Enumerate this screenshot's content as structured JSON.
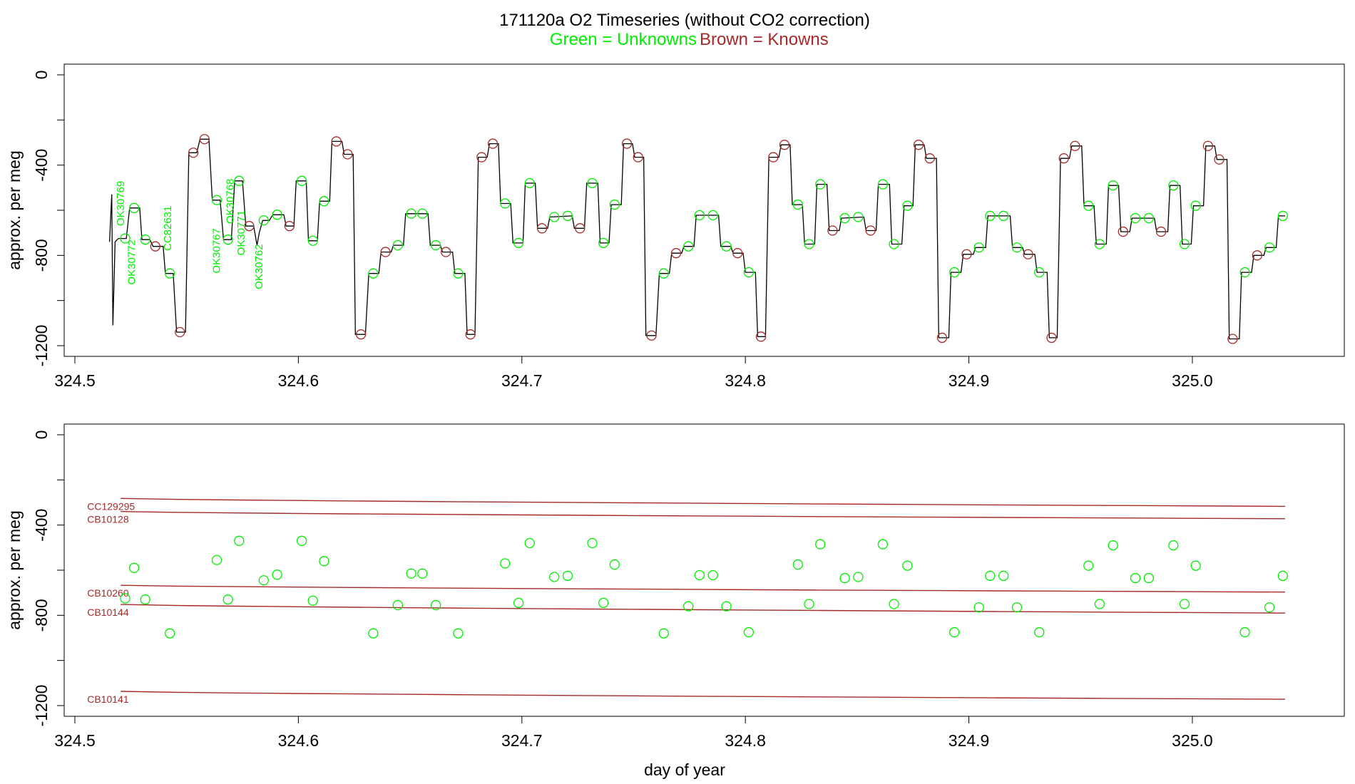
{
  "chart_data": {
    "type": "line",
    "title": "171120a   O2 Timeseries (without CO2 correction)",
    "subtitle_green": "Green = Unknowns",
    "subtitle_brown": "Brown = Knowns",
    "xlabel": "day of year",
    "xlim": [
      324.5,
      325.06
    ],
    "xticks": [
      324.5,
      324.6,
      324.7,
      324.8,
      324.9,
      325.0
    ],
    "xtick_labels": [
      "324.5",
      "324.6",
      "324.7",
      "324.8",
      "324.9",
      "325.0"
    ],
    "colors": {
      "unknown": "#00ee00",
      "known": "#a52a2a",
      "trace": "#000000"
    },
    "panels": [
      {
        "ylabel": "approx. per meg",
        "ylim": [
          -1200,
          0
        ],
        "yticks": [
          0,
          -400,
          -800,
          -1200
        ],
        "ytick_labels": [
          "0",
          "-400",
          "-800",
          "-1200"
        ],
        "vertical_labels": [
          {
            "text": "OK30769",
            "x": 324.522,
            "y": -670
          },
          {
            "text": "OK30772",
            "x": 324.527,
            "y": -930
          },
          {
            "text": "CC82631",
            "x": 324.543,
            "y": -780
          },
          {
            "text": "OK30767",
            "x": 324.565,
            "y": -880
          },
          {
            "text": "OK30768",
            "x": 324.571,
            "y": -660
          },
          {
            "text": "OK30771",
            "x": 324.576,
            "y": -800
          },
          {
            "text": "OK30762",
            "x": 324.584,
            "y": -950
          }
        ]
      },
      {
        "ylabel": "approx. per meg",
        "ylim": [
          -1200,
          0
        ],
        "yticks": [
          0,
          -400,
          -800,
          -1200
        ],
        "ytick_labels": [
          "0",
          "-400",
          "-800",
          "-1200"
        ],
        "references": [
          {
            "name": "CC129295",
            "y_start": -282,
            "y_end": -317
          },
          {
            "name": "CB10128",
            "y_start": -340,
            "y_end": -372
          },
          {
            "name": "CB10260",
            "y_start": -667,
            "y_end": -697
          },
          {
            "name": "CB10144",
            "y_start": -752,
            "y_end": -790
          },
          {
            "name": "CB10141",
            "y_start": -1137,
            "y_end": -1172
          }
        ]
      }
    ],
    "unknowns": [
      {
        "x": 324.5225,
        "y": -725
      },
      {
        "x": 324.5265,
        "y": -590
      },
      {
        "x": 324.5315,
        "y": -730
      },
      {
        "x": 324.5425,
        "y": -880
      },
      {
        "x": 324.5635,
        "y": -555
      },
      {
        "x": 324.5685,
        "y": -730
      },
      {
        "x": 324.5735,
        "y": -470
      },
      {
        "x": 324.5845,
        "y": -645
      },
      {
        "x": 324.5905,
        "y": -620
      },
      {
        "x": 324.6015,
        "y": -470
      },
      {
        "x": 324.6065,
        "y": -735
      },
      {
        "x": 324.6115,
        "y": -560
      },
      {
        "x": 324.6335,
        "y": -880
      },
      {
        "x": 324.6445,
        "y": -755
      },
      {
        "x": 324.6505,
        "y": -615
      },
      {
        "x": 324.6555,
        "y": -615
      },
      {
        "x": 324.6615,
        "y": -755
      },
      {
        "x": 324.6715,
        "y": -880
      },
      {
        "x": 324.6925,
        "y": -570
      },
      {
        "x": 324.6985,
        "y": -745
      },
      {
        "x": 324.7035,
        "y": -480
      },
      {
        "x": 324.7145,
        "y": -630
      },
      {
        "x": 324.7205,
        "y": -625
      },
      {
        "x": 324.7315,
        "y": -480
      },
      {
        "x": 324.7365,
        "y": -745
      },
      {
        "x": 324.7415,
        "y": -575
      },
      {
        "x": 324.7635,
        "y": -880
      },
      {
        "x": 324.7745,
        "y": -760
      },
      {
        "x": 324.7795,
        "y": -622
      },
      {
        "x": 324.7855,
        "y": -622
      },
      {
        "x": 324.7915,
        "y": -760
      },
      {
        "x": 324.8015,
        "y": -875
      },
      {
        "x": 324.8235,
        "y": -575
      },
      {
        "x": 324.8285,
        "y": -750
      },
      {
        "x": 324.8335,
        "y": -485
      },
      {
        "x": 324.8445,
        "y": -635
      },
      {
        "x": 324.8505,
        "y": -630
      },
      {
        "x": 324.8615,
        "y": -485
      },
      {
        "x": 324.8665,
        "y": -750
      },
      {
        "x": 324.8725,
        "y": -580
      },
      {
        "x": 324.8935,
        "y": -875
      },
      {
        "x": 324.9045,
        "y": -765
      },
      {
        "x": 324.9095,
        "y": -625
      },
      {
        "x": 324.9155,
        "y": -625
      },
      {
        "x": 324.9215,
        "y": -765
      },
      {
        "x": 324.9315,
        "y": -875
      },
      {
        "x": 324.9535,
        "y": -580
      },
      {
        "x": 324.9585,
        "y": -750
      },
      {
        "x": 324.9645,
        "y": -490
      },
      {
        "x": 324.9745,
        "y": -635
      },
      {
        "x": 324.9805,
        "y": -635
      },
      {
        "x": 324.9915,
        "y": -490
      },
      {
        "x": 324.9965,
        "y": -750
      },
      {
        "x": 325.0015,
        "y": -580
      },
      {
        "x": 325.0235,
        "y": -875
      },
      {
        "x": 325.0345,
        "y": -765
      },
      {
        "x": 325.0405,
        "y": -625
      }
    ],
    "knowns": [
      {
        "x": 324.536,
        "y": -760
      },
      {
        "x": 324.547,
        "y": -1140
      },
      {
        "x": 324.553,
        "y": -345
      },
      {
        "x": 324.558,
        "y": -285
      },
      {
        "x": 324.578,
        "y": -670
      },
      {
        "x": 324.596,
        "y": -670
      },
      {
        "x": 324.617,
        "y": -295
      },
      {
        "x": 324.622,
        "y": -352
      },
      {
        "x": 324.628,
        "y": -1150
      },
      {
        "x": 324.639,
        "y": -785
      },
      {
        "x": 324.666,
        "y": -785
      },
      {
        "x": 324.677,
        "y": -1150
      },
      {
        "x": 324.682,
        "y": -365
      },
      {
        "x": 324.687,
        "y": -305
      },
      {
        "x": 324.709,
        "y": -680
      },
      {
        "x": 324.726,
        "y": -680
      },
      {
        "x": 324.747,
        "y": -305
      },
      {
        "x": 324.752,
        "y": -365
      },
      {
        "x": 324.758,
        "y": -1155
      },
      {
        "x": 324.769,
        "y": -790
      },
      {
        "x": 324.7965,
        "y": -790
      },
      {
        "x": 324.807,
        "y": -1160
      },
      {
        "x": 324.8125,
        "y": -365
      },
      {
        "x": 324.8175,
        "y": -310
      },
      {
        "x": 324.839,
        "y": -690
      },
      {
        "x": 324.856,
        "y": -690
      },
      {
        "x": 324.8775,
        "y": -310
      },
      {
        "x": 324.8825,
        "y": -370
      },
      {
        "x": 324.888,
        "y": -1165
      },
      {
        "x": 324.899,
        "y": -795
      },
      {
        "x": 324.9265,
        "y": -795
      },
      {
        "x": 324.937,
        "y": -1165
      },
      {
        "x": 324.9425,
        "y": -370
      },
      {
        "x": 324.9475,
        "y": -315
      },
      {
        "x": 324.969,
        "y": -695
      },
      {
        "x": 324.986,
        "y": -695
      },
      {
        "x": 325.007,
        "y": -315
      },
      {
        "x": 325.012,
        "y": -375
      },
      {
        "x": 325.018,
        "y": -1170
      },
      {
        "x": 325.029,
        "y": -800
      }
    ],
    "trace": [
      [
        324.5155,
        -740
      ],
      [
        324.5165,
        -530
      ],
      [
        324.517,
        -1110
      ],
      [
        324.518,
        -740
      ],
      [
        324.5195,
        -725
      ],
      [
        324.523,
        -725
      ],
      [
        324.5245,
        -590
      ],
      [
        324.529,
        -590
      ],
      [
        324.53,
        -730
      ],
      [
        324.5335,
        -730
      ],
      [
        324.535,
        -760
      ],
      [
        324.5395,
        -760
      ],
      [
        324.5405,
        -880
      ],
      [
        324.544,
        -880
      ],
      [
        324.5455,
        -1140
      ],
      [
        324.5495,
        -1140
      ],
      [
        324.551,
        -345
      ],
      [
        324.5545,
        -345
      ],
      [
        324.556,
        -285
      ],
      [
        324.56,
        -285
      ],
      [
        324.5615,
        -555
      ],
      [
        324.565,
        -555
      ],
      [
        324.5665,
        -730
      ],
      [
        324.57,
        -730
      ],
      [
        324.5715,
        -470
      ],
      [
        324.575,
        -470
      ],
      [
        324.5765,
        -670
      ],
      [
        324.58,
        -670
      ],
      [
        324.5815,
        -755
      ],
      [
        324.5825,
        -700
      ],
      [
        324.584,
        -645
      ],
      [
        324.587,
        -645
      ],
      [
        324.5885,
        -620
      ],
      [
        324.5935,
        -620
      ],
      [
        324.5945,
        -670
      ],
      [
        324.598,
        -670
      ],
      [
        324.599,
        -470
      ],
      [
        324.6035,
        -470
      ],
      [
        324.6045,
        -735
      ],
      [
        324.6085,
        -735
      ],
      [
        324.6095,
        -560
      ],
      [
        324.614,
        -560
      ],
      [
        324.615,
        -295
      ],
      [
        324.6195,
        -295
      ],
      [
        324.6205,
        -352
      ],
      [
        324.6245,
        -352
      ],
      [
        324.6255,
        -1150
      ],
      [
        324.63,
        -1150
      ],
      [
        324.6315,
        -880
      ],
      [
        324.636,
        -880
      ],
      [
        324.637,
        -785
      ],
      [
        324.6415,
        -785
      ],
      [
        324.6425,
        -755
      ],
      [
        324.647,
        -755
      ],
      [
        324.648,
        -615
      ],
      [
        324.658,
        -615
      ],
      [
        324.659,
        -755
      ],
      [
        324.6635,
        -755
      ],
      [
        324.6645,
        -785
      ],
      [
        324.669,
        -785
      ],
      [
        324.67,
        -880
      ],
      [
        324.6745,
        -880
      ],
      [
        324.6755,
        -1150
      ],
      [
        324.679,
        -1150
      ],
      [
        324.6805,
        -365
      ],
      [
        324.6845,
        -365
      ],
      [
        324.6855,
        -305
      ],
      [
        324.6895,
        -305
      ],
      [
        324.6905,
        -570
      ],
      [
        324.695,
        -570
      ],
      [
        324.696,
        -745
      ],
      [
        324.7005,
        -745
      ],
      [
        324.7015,
        -480
      ],
      [
        324.706,
        -480
      ],
      [
        324.707,
        -680
      ],
      [
        324.7115,
        -680
      ],
      [
        324.7125,
        -630
      ],
      [
        324.7225,
        -625
      ],
      [
        324.7235,
        -680
      ],
      [
        324.728,
        -680
      ],
      [
        324.729,
        -480
      ],
      [
        324.734,
        -480
      ],
      [
        324.735,
        -745
      ],
      [
        324.739,
        -745
      ],
      [
        324.74,
        -575
      ],
      [
        324.7445,
        -575
      ],
      [
        324.7455,
        -305
      ],
      [
        324.7495,
        -305
      ],
      [
        324.7505,
        -365
      ],
      [
        324.7545,
        -365
      ],
      [
        324.7555,
        -1155
      ],
      [
        324.76,
        -1155
      ],
      [
        324.7615,
        -880
      ],
      [
        324.766,
        -880
      ],
      [
        324.767,
        -790
      ],
      [
        324.7715,
        -790
      ],
      [
        324.7725,
        -760
      ],
      [
        324.777,
        -760
      ],
      [
        324.778,
        -622
      ],
      [
        324.788,
        -622
      ],
      [
        324.789,
        -760
      ],
      [
        324.7935,
        -760
      ],
      [
        324.7945,
        -790
      ],
      [
        324.799,
        -790
      ],
      [
        324.8,
        -875
      ],
      [
        324.8045,
        -875
      ],
      [
        324.8055,
        -1160
      ],
      [
        324.809,
        -1160
      ],
      [
        324.8105,
        -365
      ],
      [
        324.815,
        -365
      ],
      [
        324.816,
        -310
      ],
      [
        324.82,
        -310
      ],
      [
        324.821,
        -575
      ],
      [
        324.8255,
        -575
      ],
      [
        324.8265,
        -750
      ],
      [
        324.831,
        -750
      ],
      [
        324.832,
        -485
      ],
      [
        324.8365,
        -485
      ],
      [
        324.8375,
        -690
      ],
      [
        324.842,
        -690
      ],
      [
        324.843,
        -635
      ],
      [
        324.853,
        -630
      ],
      [
        324.854,
        -690
      ],
      [
        324.8585,
        -690
      ],
      [
        324.8595,
        -485
      ],
      [
        324.8645,
        -485
      ],
      [
        324.8655,
        -750
      ],
      [
        324.87,
        -750
      ],
      [
        324.871,
        -580
      ],
      [
        324.875,
        -580
      ],
      [
        324.876,
        -310
      ],
      [
        324.88,
        -310
      ],
      [
        324.881,
        -370
      ],
      [
        324.8855,
        -370
      ],
      [
        324.8865,
        -1165
      ],
      [
        324.891,
        -1165
      ],
      [
        324.892,
        -875
      ],
      [
        324.8965,
        -875
      ],
      [
        324.8975,
        -795
      ],
      [
        324.902,
        -795
      ],
      [
        324.903,
        -765
      ],
      [
        324.9075,
        -765
      ],
      [
        324.9085,
        -625
      ],
      [
        324.9185,
        -625
      ],
      [
        324.9195,
        -765
      ],
      [
        324.924,
        -765
      ],
      [
        324.925,
        -795
      ],
      [
        324.9295,
        -795
      ],
      [
        324.9305,
        -875
      ],
      [
        324.935,
        -875
      ],
      [
        324.936,
        -1165
      ],
      [
        324.9395,
        -1165
      ],
      [
        324.941,
        -370
      ],
      [
        324.945,
        -370
      ],
      [
        324.946,
        -315
      ],
      [
        324.9505,
        -315
      ],
      [
        324.9515,
        -580
      ],
      [
        324.956,
        -580
      ],
      [
        324.957,
        -750
      ],
      [
        324.9615,
        -750
      ],
      [
        324.9625,
        -490
      ],
      [
        324.967,
        -490
      ],
      [
        324.968,
        -695
      ],
      [
        324.972,
        -695
      ],
      [
        324.973,
        -635
      ],
      [
        324.983,
        -635
      ],
      [
        324.984,
        -695
      ],
      [
        324.989,
        -695
      ],
      [
        324.99,
        -490
      ],
      [
        324.9945,
        -490
      ],
      [
        324.9955,
        -750
      ],
      [
        324.9995,
        -750
      ],
      [
        325.0005,
        -580
      ],
      [
        325.005,
        -580
      ],
      [
        325.006,
        -315
      ],
      [
        325.01,
        -315
      ],
      [
        325.011,
        -375
      ],
      [
        325.0155,
        -375
      ],
      [
        325.0165,
        -1170
      ],
      [
        325.021,
        -1170
      ],
      [
        325.022,
        -875
      ],
      [
        325.0265,
        -875
      ],
      [
        325.0275,
        -800
      ],
      [
        325.032,
        -800
      ],
      [
        325.033,
        -765
      ],
      [
        325.0375,
        -765
      ],
      [
        325.0385,
        -625
      ],
      [
        325.0415,
        -625
      ]
    ]
  }
}
